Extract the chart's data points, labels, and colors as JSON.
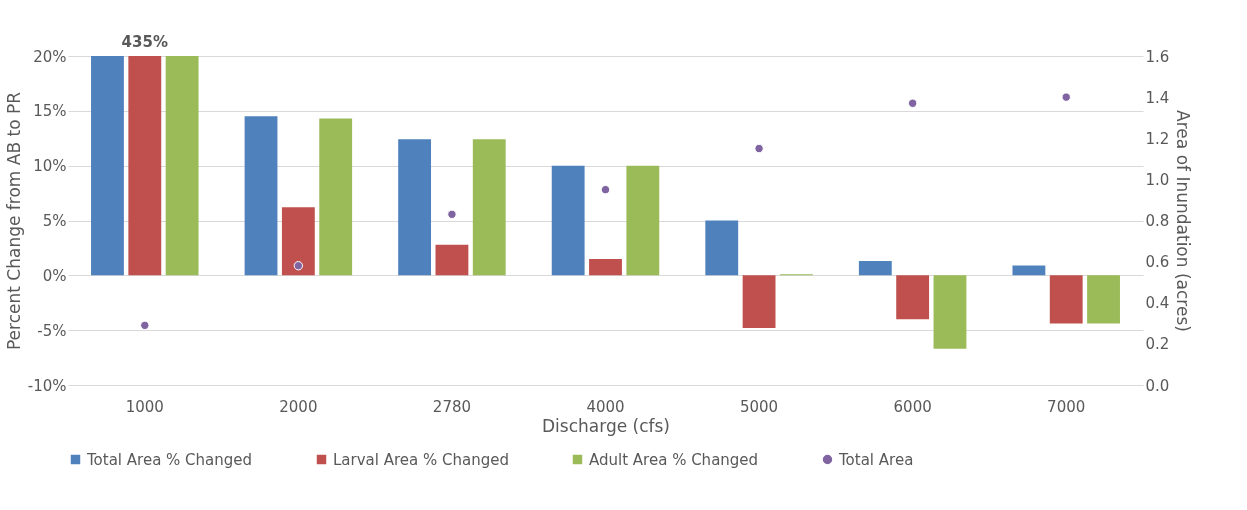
{
  "chart_data": {
    "type": "bar",
    "xlabel": "Discharge (cfs)",
    "ylabel": "Percent Change from AB to PR",
    "y2label": "Area of Inundation (acres)",
    "categories": [
      "1000",
      "2000",
      "2780",
      "4000",
      "5000",
      "6000",
      "7000"
    ],
    "series": [
      {
        "name": "Total Area % Changed",
        "color": "#4f81bd",
        "values": [
          20,
          14.5,
          12.4,
          10.0,
          5.0,
          1.3,
          0.9
        ]
      },
      {
        "name": "Larval Area % Changed",
        "color": "#c0504d",
        "values": [
          20,
          6.2,
          2.8,
          1.5,
          -4.8,
          -4.0,
          -4.4
        ]
      },
      {
        "name": "Adult Area % Changed",
        "color": "#9bbb59",
        "values": [
          20,
          14.3,
          12.4,
          10.0,
          0.1,
          -6.7,
          -4.4
        ]
      },
      {
        "name": "Total Area",
        "type": "scatter",
        "axis": "y2",
        "color": "#8064a2",
        "values": [
          0.29,
          0.58,
          0.83,
          0.95,
          1.15,
          1.37,
          1.4
        ]
      }
    ],
    "ylim": [
      -10,
      20
    ],
    "yticks": [
      {
        "value": -10,
        "label": "-10%"
      },
      {
        "value": -5,
        "label": "-5%"
      },
      {
        "value": 0,
        "label": "0%"
      },
      {
        "value": 5,
        "label": "5%"
      },
      {
        "value": 10,
        "label": "10%"
      },
      {
        "value": 15,
        "label": "15%"
      },
      {
        "value": 20,
        "label": "20%"
      }
    ],
    "y2lim": [
      0,
      1.6
    ],
    "y2ticks": [
      {
        "value": 0,
        "label": "0.0"
      },
      0.2,
      0.4,
      0.6,
      0.8,
      {
        "value": 1,
        "label": "1.0"
      },
      1.2,
      1.4,
      1.6
    ],
    "annotations": [
      {
        "text": "435%",
        "x": "1000",
        "y": 20
      }
    ],
    "grid": "y",
    "legend": "bottom",
    "marker": "circle"
  }
}
